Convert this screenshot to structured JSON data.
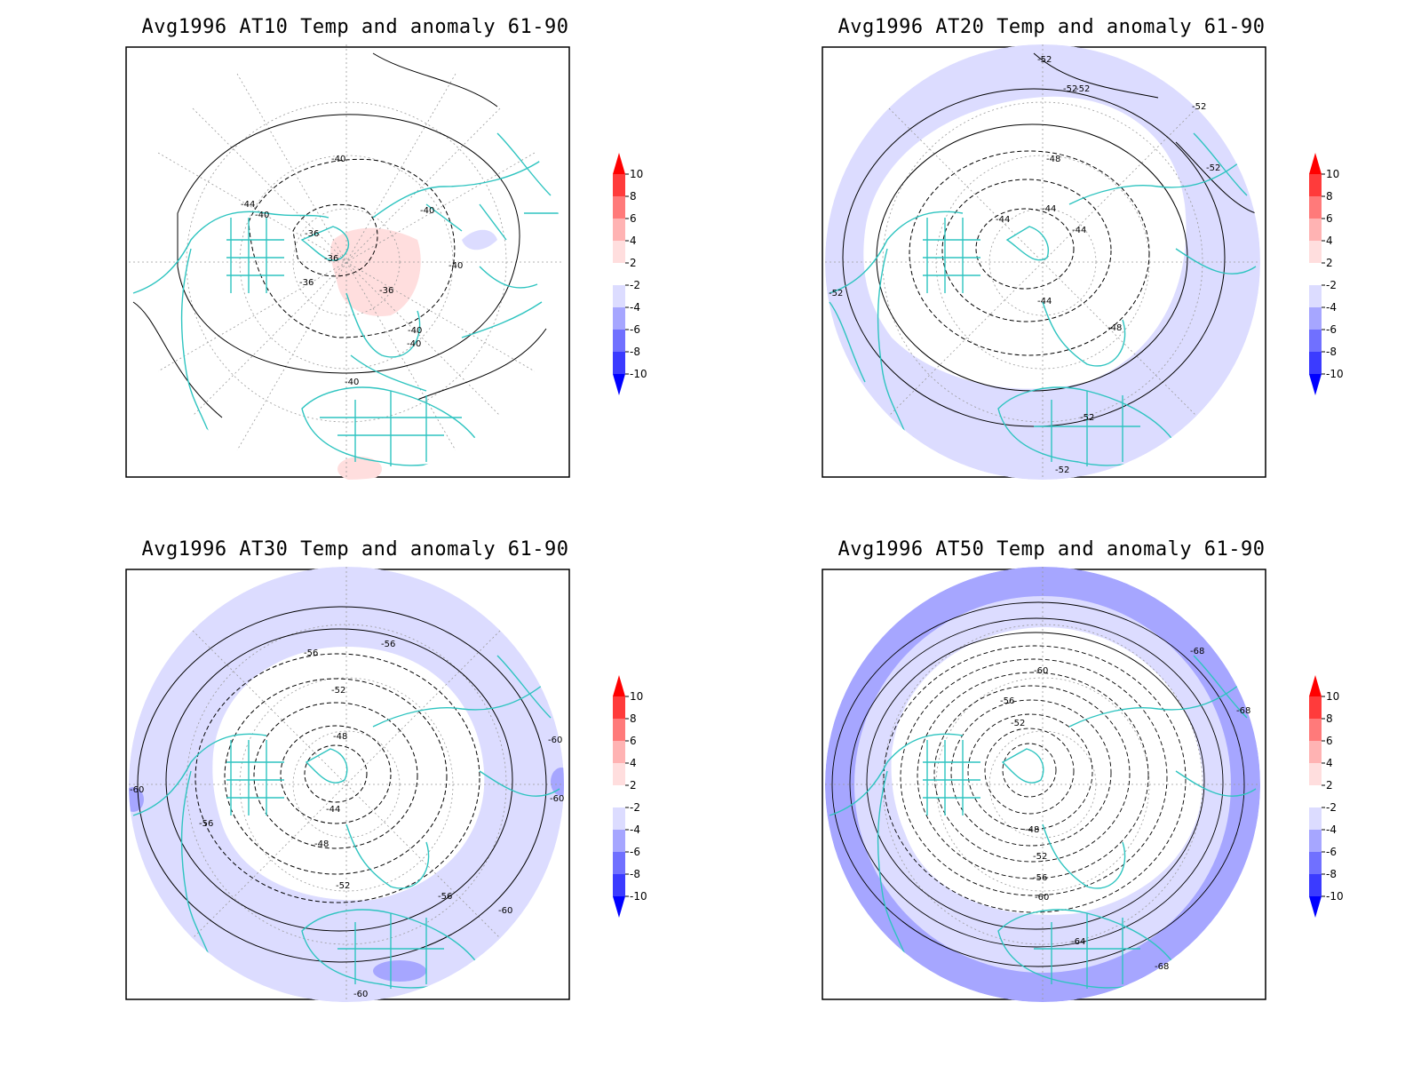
{
  "colors": {
    "land_outline": "#2ec4c0",
    "pos_4": "#ff3b3b",
    "pos_3": "#ff7a7a",
    "pos_2": "#ffb3b3",
    "pos_1": "#ffdede",
    "neg_1": "#dcdcff",
    "neg_2": "#a6a6ff",
    "neg_3": "#7070ff",
    "neg_4": "#3b3bff",
    "tip_pos": "#ff0000",
    "tip_neg": "#0000ff"
  },
  "colorbar_labels": [
    "10",
    "8",
    "6",
    "4",
    "2",
    "-2",
    "-4",
    "-6",
    "-8",
    "-10"
  ],
  "panels": [
    {
      "title": "Avg1996 AT10 Temp and anomaly 61-90",
      "contour_labels": [
        "-40",
        "-44",
        "-40",
        "-36",
        "-36",
        "-36",
        "-36",
        "-40",
        "-40",
        "-40",
        "-40",
        "-40"
      ]
    },
    {
      "title": "Avg1996 AT20 Temp and anomaly 61-90",
      "contour_labels": [
        "-52",
        "-52",
        "-52",
        "-52",
        "-52",
        "-48",
        "-44",
        "-44",
        "-44",
        "-44",
        "-48",
        "-52",
        "-52",
        "-52"
      ]
    },
    {
      "title": "Avg1996 AT30 Temp and anomaly 61-90",
      "contour_labels": [
        "-56",
        "-56",
        "-52",
        "-48",
        "-44",
        "-48",
        "-52",
        "-56",
        "-60",
        "-60",
        "-60",
        "-60",
        "-56",
        "-60"
      ]
    },
    {
      "title": "Avg1996 AT50 Temp and anomaly 61-90",
      "contour_labels": [
        "-68",
        "-60",
        "-56",
        "-52",
        "-48",
        "-52",
        "-56",
        "-60",
        "-64",
        "-68",
        "-68"
      ]
    }
  ]
}
